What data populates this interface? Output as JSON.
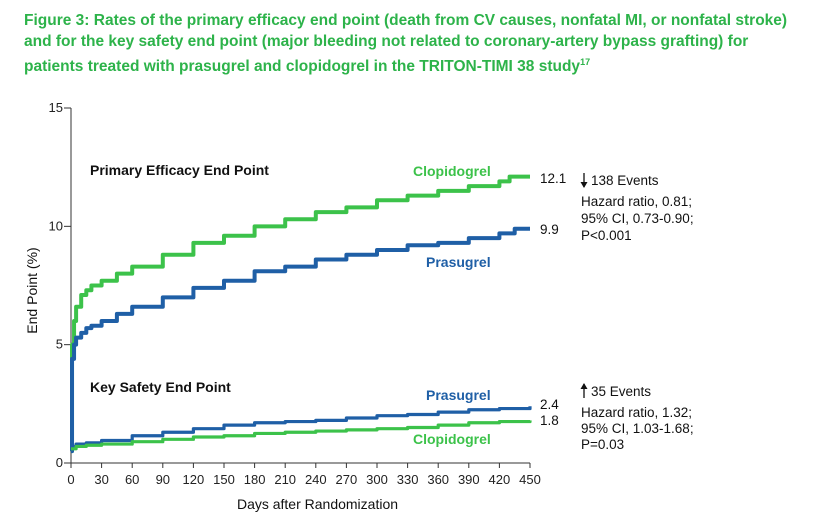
{
  "figure": {
    "title": "Figure 3: Rates of the primary efficacy end point (death from CV causes, nonfatal MI, or nonfatal stroke) and for the key safety end point (major bleeding not related to coronary-artery bypass grafting) for patients treated with prasugrel and clopidogrel in the TRITON-TIMI 38 study",
    "title_ref": "17"
  },
  "colors": {
    "title": "#2db34a",
    "clopidogrel": "#3cc24a",
    "prasugrel": "#1f5fa6"
  },
  "chart_data": {
    "type": "line",
    "xlabel": "Days after Randomization",
    "ylabel": "End Point (%)",
    "xlim": [
      0,
      450
    ],
    "ylim": [
      0,
      15
    ],
    "x_ticks": [
      0,
      30,
      60,
      90,
      120,
      150,
      180,
      210,
      240,
      270,
      300,
      330,
      360,
      390,
      420,
      450
    ],
    "y_ticks": [
      0,
      5,
      10,
      15
    ],
    "grid": false,
    "panels": [
      {
        "label": "Primary Efficacy End Point",
        "series": [
          {
            "name": "Clopidogrel",
            "end_value_label": "12.1",
            "x": [
              0,
              1,
              3,
              5,
              10,
              15,
              20,
              30,
              45,
              60,
              90,
              120,
              150,
              180,
              210,
              240,
              270,
              300,
              330,
              360,
              390,
              420,
              430,
              450
            ],
            "y": [
              0.5,
              5.0,
              6.0,
              6.6,
              7.1,
              7.3,
              7.5,
              7.7,
              8.0,
              8.3,
              8.8,
              9.3,
              9.6,
              10.0,
              10.3,
              10.6,
              10.8,
              11.1,
              11.3,
              11.5,
              11.7,
              11.9,
              12.1,
              12.1
            ]
          },
          {
            "name": "Prasugrel",
            "end_value_label": "9.9",
            "x": [
              0,
              1,
              3,
              5,
              10,
              15,
              20,
              30,
              45,
              60,
              90,
              120,
              150,
              180,
              210,
              240,
              270,
              300,
              330,
              360,
              390,
              420,
              435,
              450
            ],
            "y": [
              0.5,
              4.4,
              5.0,
              5.3,
              5.5,
              5.7,
              5.8,
              6.0,
              6.3,
              6.6,
              7.0,
              7.4,
              7.7,
              8.1,
              8.3,
              8.6,
              8.8,
              9.0,
              9.2,
              9.3,
              9.5,
              9.7,
              9.9,
              9.9
            ]
          }
        ],
        "annotation": {
          "events": "138 Events",
          "direction": "down",
          "lines": [
            "Hazard ratio, 0.81;",
            "95% CI, 0.73-0.90;",
            "P<0.001"
          ]
        }
      },
      {
        "label": "Key Safety End Point",
        "series": [
          {
            "name": "Prasugrel",
            "end_value_label": "2.4",
            "x": [
              0,
              5,
              15,
              30,
              60,
              90,
              120,
              150,
              180,
              210,
              240,
              270,
              300,
              330,
              360,
              390,
              420,
              450
            ],
            "y": [
              0.7,
              0.8,
              0.85,
              0.95,
              1.15,
              1.3,
              1.45,
              1.6,
              1.7,
              1.75,
              1.8,
              1.9,
              2.0,
              2.05,
              2.15,
              2.25,
              2.3,
              2.4
            ]
          },
          {
            "name": "Clopidogrel",
            "end_value_label": "1.8",
            "x": [
              0,
              5,
              15,
              30,
              60,
              90,
              120,
              150,
              180,
              210,
              240,
              270,
              300,
              330,
              360,
              390,
              420,
              450
            ],
            "y": [
              0.6,
              0.7,
              0.75,
              0.8,
              0.9,
              1.0,
              1.1,
              1.15,
              1.25,
              1.3,
              1.35,
              1.4,
              1.45,
              1.5,
              1.6,
              1.7,
              1.75,
              1.8
            ]
          }
        ],
        "annotation": {
          "events": "35 Events",
          "direction": "up",
          "lines": [
            "Hazard ratio, 1.32;",
            "95% CI, 1.03-1.68;",
            "P=0.03"
          ]
        }
      }
    ]
  }
}
